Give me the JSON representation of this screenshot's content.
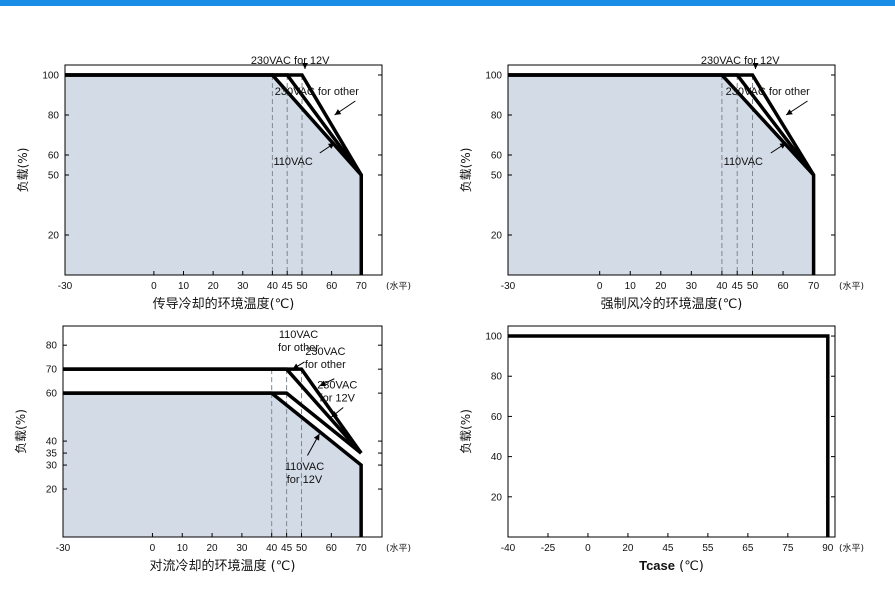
{
  "colors": {
    "top_bar": "#1a8ee6",
    "plot_fill": "#d3dbe6",
    "curve": "#000000",
    "dashed": "#7f8791",
    "frame": "#000000"
  },
  "chart_data": [
    {
      "type": "line",
      "title": "",
      "xlabel": "传导冷却的环境温度(℃)",
      "ylabel": "负载(%)",
      "x_unit": "(水平)",
      "xlim": [
        -30,
        77
      ],
      "ylim": [
        0,
        105
      ],
      "xticks": [
        -30,
        0,
        10,
        20,
        30,
        40,
        45,
        50,
        60,
        70
      ],
      "yticks": [
        20,
        50,
        60,
        80,
        100
      ],
      "dashed_x": [
        40,
        45,
        50
      ],
      "fill": true,
      "fill_series": 0,
      "series": [
        {
          "name": "110VAC",
          "x": [
            -30,
            40,
            70,
            70
          ],
          "y": [
            100,
            100,
            50,
            0
          ]
        },
        {
          "name": "230VAC for other",
          "x": [
            -30,
            45,
            70
          ],
          "y": [
            100,
            100,
            50
          ]
        },
        {
          "name": "230VAC for 12V",
          "x": [
            -30,
            50,
            70
          ],
          "y": [
            100,
            100,
            50
          ]
        }
      ],
      "annotations": [
        {
          "lines": [
            "230VAC for 12V"
          ],
          "tx": 46,
          "ty": 105.5,
          "ax": 51,
          "ay": 104,
          "bx": 51,
          "by": 103
        },
        {
          "lines": [
            "230VAC for other"
          ],
          "tx": 55,
          "ty": 90,
          "ax": 68,
          "ay": 87,
          "bx": 61,
          "by": 80
        },
        {
          "lines": [
            "110VAC"
          ],
          "tx": 47,
          "ty": 55,
          "ax": 56,
          "ay": 61,
          "bx": 61,
          "by": 66
        }
      ]
    },
    {
      "type": "line",
      "title": "",
      "xlabel": "强制风冷的环境温度(℃)",
      "ylabel": "负载(%)",
      "x_unit": "(水平)",
      "xlim": [
        -30,
        77
      ],
      "ylim": [
        0,
        105
      ],
      "xticks": [
        -30,
        0,
        10,
        20,
        30,
        40,
        45,
        50,
        60,
        70
      ],
      "yticks": [
        20,
        50,
        60,
        80,
        100
      ],
      "dashed_x": [
        40,
        45,
        50
      ],
      "fill": true,
      "fill_series": 0,
      "series": [
        {
          "name": "110VAC",
          "x": [
            -30,
            40,
            70,
            70
          ],
          "y": [
            100,
            100,
            50,
            0
          ]
        },
        {
          "name": "230VAC for other",
          "x": [
            -30,
            45,
            70
          ],
          "y": [
            100,
            100,
            50
          ]
        },
        {
          "name": "230VAC for 12V",
          "x": [
            -30,
            50,
            70
          ],
          "y": [
            100,
            100,
            50
          ]
        }
      ],
      "annotations": [
        {
          "lines": [
            "230VAC for 12V"
          ],
          "tx": 46,
          "ty": 105.5,
          "ax": 51,
          "ay": 104,
          "bx": 51,
          "by": 103
        },
        {
          "lines": [
            "230VAC for other"
          ],
          "tx": 55,
          "ty": 90,
          "ax": 68,
          "ay": 87,
          "bx": 61,
          "by": 80
        },
        {
          "lines": [
            "110VAC"
          ],
          "tx": 47,
          "ty": 55,
          "ax": 56,
          "ay": 61,
          "bx": 61,
          "by": 66
        }
      ]
    },
    {
      "type": "line",
      "title": "",
      "xlabel": "对流冷却的环境温度 (℃)",
      "ylabel": "负载(%)",
      "x_unit": "(水平)",
      "xlim": [
        -30,
        77
      ],
      "ylim": [
        0,
        88
      ],
      "xticks": [
        -30,
        0,
        10,
        20,
        30,
        40,
        45,
        50,
        60,
        70
      ],
      "yticks": [
        20,
        30,
        35,
        40,
        60,
        70,
        80
      ],
      "dashed_x": [
        40,
        45,
        50
      ],
      "fill": true,
      "fill_series": 0,
      "series": [
        {
          "name": "110VAC for 12V",
          "x": [
            -30,
            40,
            70,
            70
          ],
          "y": [
            60,
            60,
            30,
            0
          ]
        },
        {
          "name": "230VAC for 12V",
          "x": [
            -30,
            45,
            70
          ],
          "y": [
            60,
            60,
            35
          ]
        },
        {
          "name": "110VAC for other",
          "x": [
            -30,
            45,
            70
          ],
          "y": [
            70,
            70,
            35
          ]
        },
        {
          "name": "230VAC for other",
          "x": [
            -30,
            50,
            70
          ],
          "y": [
            70,
            70,
            35
          ]
        }
      ],
      "annotations": [
        {
          "lines": [
            "110VAC",
            "for other"
          ],
          "tx": 49,
          "ty": 83,
          "ax": 51,
          "ay": 73,
          "bx": 47,
          "by": 70
        },
        {
          "lines": [
            "230VAC",
            "for other"
          ],
          "tx": 58,
          "ty": 76,
          "ax": 61,
          "ay": 66,
          "bx": 56,
          "by": 63
        },
        {
          "lines": [
            "230VAC",
            "for 12V"
          ],
          "tx": 62,
          "ty": 62,
          "ax": 64,
          "ay": 54,
          "bx": 60,
          "by": 50
        },
        {
          "lines": [
            "110VAC",
            "for 12V"
          ],
          "tx": 51,
          "ty": 28,
          "ax": 52,
          "ay": 34,
          "bx": 56,
          "by": 43
        }
      ]
    },
    {
      "type": "line",
      "title": "",
      "xlabel": "Tcase",
      "xlabel_suffix": "(℃)",
      "ylabel": "负载(%)",
      "x_unit": "(水平)",
      "xlim": [
        -40,
        97
      ],
      "ylim": [
        0,
        105
      ],
      "xticks": [
        -40,
        -25,
        0,
        20,
        45,
        55,
        65,
        75,
        90
      ],
      "xtick_positions": [
        0,
        1,
        2,
        3,
        4,
        5,
        6,
        7,
        8
      ],
      "xtick_spacing_uniform": true,
      "yticks": [
        20,
        40,
        60,
        80,
        100
      ],
      "dashed_x": [],
      "fill": false,
      "series": [
        {
          "name": "Tcase",
          "x": [
            -40,
            90,
            90
          ],
          "y": [
            100,
            100,
            0
          ]
        }
      ],
      "annotations": []
    }
  ]
}
